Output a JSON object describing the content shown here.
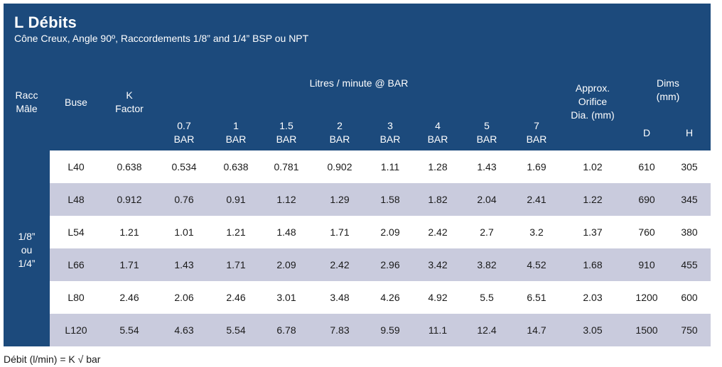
{
  "title": "L Débits",
  "subtitle": "Cône Creux, Angle 90º, Raccordements 1/8” and 1/4” BSP ou NPT",
  "headers": {
    "racc_line1": "Racc",
    "racc_line2": "Mâle",
    "buse": "Buse",
    "k_line1": "K",
    "k_line2": "Factor",
    "litres_group": "Litres / minute @ BAR",
    "pressures": [
      "0.7",
      "1",
      "1.5",
      "2",
      "3",
      "4",
      "5",
      "7"
    ],
    "bar_unit": "BAR",
    "orifice_line1": "Approx.",
    "orifice_line2": "Orifice",
    "orifice_line3": "Dia. (mm)",
    "dims_line1": "Dims",
    "dims_line2": "(mm)",
    "d": "D",
    "h": "H"
  },
  "racc_value": {
    "line1": "1/8”",
    "line2": "ou",
    "line3": "1/4”"
  },
  "rows": [
    [
      "L40",
      "0.638",
      "0.534",
      "0.638",
      "0.781",
      "0.902",
      "1.11",
      "1.28",
      "1.43",
      "1.69",
      "1.02",
      "610",
      "305"
    ],
    [
      "L48",
      "0.912",
      "0.76",
      "0.91",
      "1.12",
      "1.29",
      "1.58",
      "1.82",
      "2.04",
      "2.41",
      "1.22",
      "690",
      "345"
    ],
    [
      "L54",
      "1.21",
      "1.01",
      "1.21",
      "1.48",
      "1.71",
      "2.09",
      "2.42",
      "2.7",
      "3.2",
      "1.37",
      "760",
      "380"
    ],
    [
      "L66",
      "1.71",
      "1.43",
      "1.71",
      "2.09",
      "2.42",
      "2.96",
      "3.42",
      "3.82",
      "4.52",
      "1.68",
      "910",
      "455"
    ],
    [
      "L80",
      "2.46",
      "2.06",
      "2.46",
      "3.01",
      "3.48",
      "4.26",
      "4.92",
      "5.5",
      "6.51",
      "2.03",
      "1200",
      "600"
    ],
    [
      "L120",
      "5.54",
      "4.63",
      "5.54",
      "6.78",
      "7.83",
      "9.59",
      "11.1",
      "12.4",
      "14.7",
      "3.05",
      "1500",
      "750"
    ]
  ],
  "footnote": "Débit (l/min) = K √ bar",
  "colors": {
    "header_bg": "#1c4a7c",
    "shaded_row": "#c9cbdd",
    "text": "#1a1a1a"
  }
}
